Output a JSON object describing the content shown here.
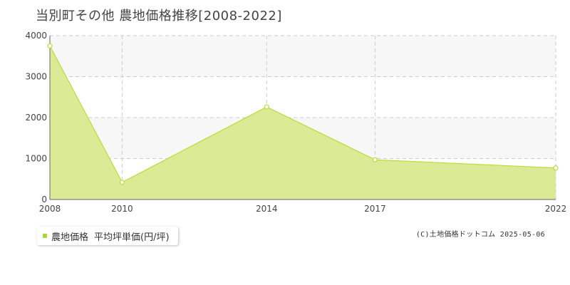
{
  "title": "当別町その他 農地価格推移[2008-2022]",
  "legend": {
    "series_label": "農地価格",
    "unit_label": "平均坪単価(円/坪)"
  },
  "credit": "(C)土地価格ドットコム 2025-05-06",
  "colors": {
    "area_fill": "#dbeb95",
    "area_line": "#b6dd3c",
    "legend_swatch": "#a8d83a",
    "band": "#f7f7f7",
    "grid": "#cccccc"
  },
  "chart_data": {
    "type": "area",
    "x": [
      2008,
      2010,
      2014,
      2017,
      2022
    ],
    "x_tick_labels": [
      "2008",
      "2010",
      "2014",
      "2017",
      "2022"
    ],
    "series": [
      {
        "name": "農地価格",
        "values": [
          3750,
          420,
          2260,
          970,
          770
        ]
      }
    ],
    "y_ticks": [
      0,
      1000,
      2000,
      3000,
      4000
    ],
    "ylim": [
      0,
      4000
    ],
    "grid": true,
    "legend_position": "bottom-left"
  }
}
